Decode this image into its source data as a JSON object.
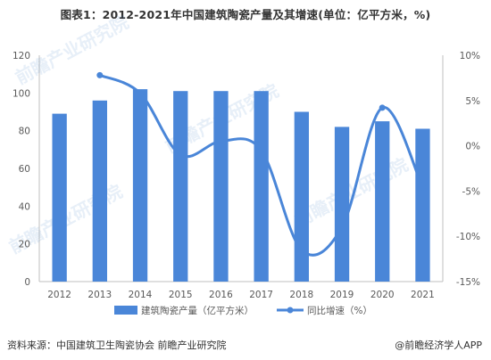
{
  "title": "图表1：2012-2021年中国建筑陶瓷产量及其增速(单位：亿平方米，%)",
  "source": "资料来源：中国建筑卫生陶瓷协会 前瞻产业研究院",
  "brand": "@前瞻经济学人APP",
  "colors": {
    "bar": "#4a86d8",
    "line": "#4a86d8",
    "axis": "#bfbfbf",
    "text": "#595959"
  },
  "chart_data": {
    "type": "bar",
    "categories": [
      "2012",
      "2013",
      "2014",
      "2015",
      "2016",
      "2017",
      "2018",
      "2019",
      "2020",
      "2021"
    ],
    "series": [
      {
        "name": "建筑陶瓷产量（亿平方米）",
        "type": "bar",
        "axis": "left",
        "values": [
          89,
          96,
          102,
          101,
          101,
          101,
          90,
          82,
          85,
          81
        ]
      },
      {
        "name": "同比增速（%）",
        "type": "line",
        "axis": "right",
        "smooth": true,
        "values": [
          null,
          7.8,
          5.8,
          -1.0,
          0.5,
          -0.5,
          -11.5,
          -9.0,
          4.2,
          -4.6
        ]
      }
    ],
    "left_axis": {
      "ylim": [
        0,
        120
      ],
      "ticks": [
        "0",
        "20",
        "40",
        "60",
        "80",
        "100",
        "120"
      ]
    },
    "right_axis": {
      "ylim": [
        -15,
        10
      ],
      "ticks": [
        "-15%",
        "-10%",
        "-5%",
        "0%",
        "5%",
        "10%"
      ]
    },
    "grid": false,
    "legend": "bottom"
  }
}
